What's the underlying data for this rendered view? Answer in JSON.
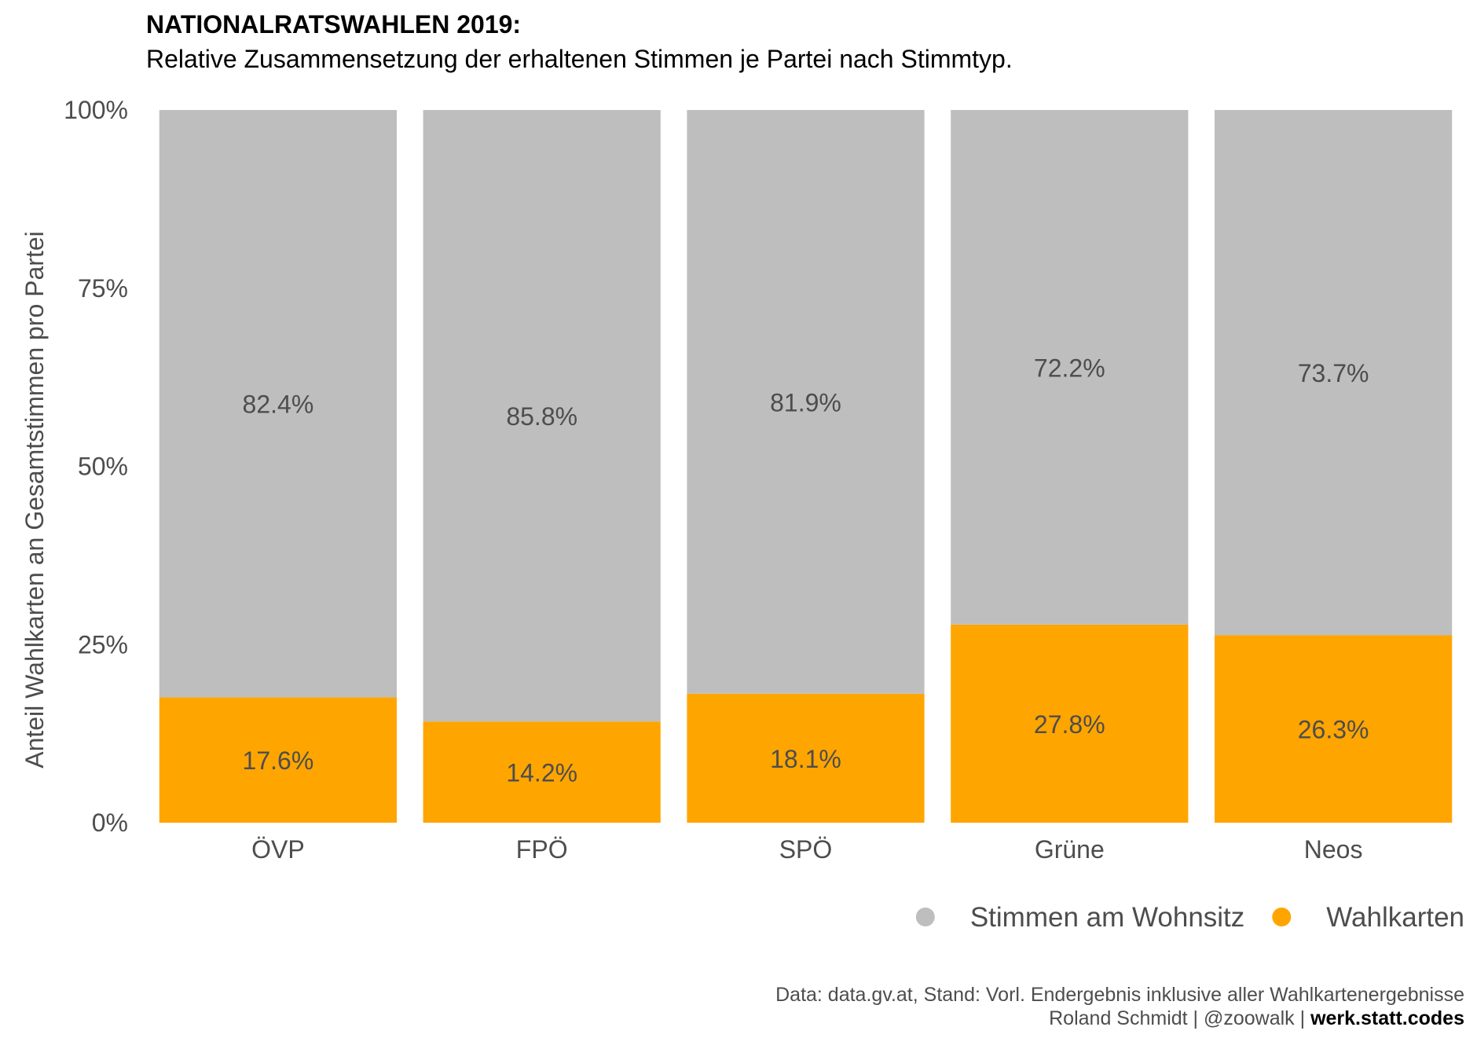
{
  "chart_data": {
    "type": "bar",
    "stacked": true,
    "title": "NATIONALRATSWAHLEN 2019:",
    "subtitle": "Relative Zusammensetzung der erhaltenen Stimmen je Partei nach Stimmtyp.",
    "xlabel": "",
    "ylabel": "Anteil Wahlkarten an Gesamtstimmen pro Partei",
    "ylim": [
      0,
      100
    ],
    "yticks": [
      "0%",
      "25%",
      "50%",
      "75%",
      "100%"
    ],
    "grid": false,
    "legend_position": "bottom-right",
    "categories": [
      "ÖVP",
      "FPÖ",
      "SPÖ",
      "Grüne",
      "Neos"
    ],
    "series": [
      {
        "name": "Wahlkarten",
        "color": "#FFA500",
        "values": [
          17.6,
          14.2,
          18.1,
          27.8,
          26.3
        ],
        "labels": [
          "17.6%",
          "14.2%",
          "18.1%",
          "27.8%",
          "26.3%"
        ]
      },
      {
        "name": "Stimmen am Wohnsitz",
        "color": "#BEBEBE",
        "values": [
          82.4,
          85.8,
          81.9,
          72.2,
          73.7
        ],
        "labels": [
          "82.4%",
          "85.8%",
          "81.9%",
          "72.2%",
          "73.7%"
        ]
      }
    ],
    "legend_order": [
      "Stimmen am Wohnsitz",
      "Wahlkarten"
    ],
    "caption": {
      "line1": "Data: data.gv.at, Stand: Vorl. Endergebnis inklusive aller Wahlkartenergebnisse",
      "line2_prefix": "Roland Schmidt | @zoowalk | ",
      "line2_bold": "werk.statt.codes"
    }
  }
}
